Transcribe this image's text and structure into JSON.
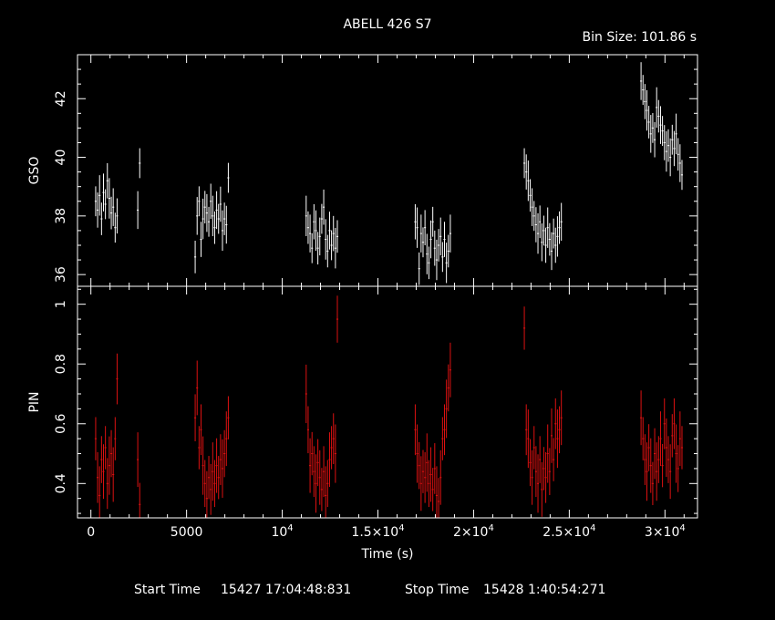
{
  "header": {
    "title": "ABELL 426 S7",
    "bin_size": "Bin Size: 101.86 s"
  },
  "footer": {
    "start_label": "Start Time",
    "start_value": "15427 17:04:48:831",
    "stop_label": "Stop Time",
    "stop_value": "15428  1:40:54:271"
  },
  "colors": {
    "gso": "#ffffff",
    "pin": "#dd1111",
    "background": "#000000",
    "frame": "#ffffff"
  },
  "chart_data": [
    {
      "type": "scatter",
      "panel": "top",
      "ylabel": "GSO",
      "xlim": [
        -700,
        31700
      ],
      "ylim": [
        35.6,
        43.5
      ],
      "yticks": [
        36,
        38,
        40,
        42
      ],
      "ytick_labels": [
        "36",
        "38",
        "40",
        "42"
      ],
      "yerr_typical": 0.6,
      "segments": [
        {
          "x0": 250,
          "n": 12,
          "y": [
            38.5,
            38.2,
            38.7,
            37.9,
            38.8,
            38.4,
            39.2,
            38.6,
            38.1,
            38.3,
            37.6,
            38.0
          ]
        },
        {
          "x0": 2450,
          "n": 2,
          "y": [
            38.2,
            39.8
          ]
        },
        {
          "x0": 5450,
          "n": 18,
          "y": [
            36.6,
            38.0,
            38.5,
            37.2,
            37.9,
            38.3,
            38.1,
            37.8,
            38.5,
            38.0,
            37.6,
            38.2,
            37.9,
            38.4,
            37.5,
            37.9,
            37.7,
            39.3
          ]
        },
        {
          "x0": 11250,
          "n": 17,
          "y": [
            38.0,
            37.6,
            37.4,
            36.9,
            37.8,
            37.5,
            36.9,
            37.3,
            37.9,
            38.3,
            37.2,
            36.8,
            37.5,
            37.0,
            37.4,
            36.9,
            37.3
          ]
        },
        {
          "x0": 16950,
          "n": 19,
          "y": [
            37.8,
            37.6,
            36.2,
            37.4,
            37.1,
            37.6,
            36.7,
            36.4,
            37.2,
            37.8,
            36.9,
            36.5,
            37.0,
            37.3,
            36.6,
            37.2,
            36.4,
            36.8,
            37.4
          ]
        },
        {
          "x0": 22650,
          "n": 20,
          "y": [
            39.8,
            39.5,
            39.2,
            38.7,
            38.3,
            38.0,
            37.7,
            37.4,
            37.8,
            37.1,
            37.5,
            37.0,
            37.6,
            37.2,
            36.8,
            37.4,
            37.0,
            37.3,
            37.6,
            37.8
          ]
        },
        {
          "x0": 28750,
          "n": 22,
          "y": [
            42.6,
            42.3,
            41.9,
            41.6,
            41.2,
            40.8,
            41.0,
            40.6,
            41.7,
            41.4,
            41.1,
            40.9,
            40.5,
            40.2,
            40.4,
            40.0,
            40.6,
            40.3,
            40.8,
            40.1,
            39.8,
            39.4
          ]
        }
      ]
    },
    {
      "type": "scatter",
      "panel": "bottom",
      "xlabel": "Time (s)",
      "ylabel": "PIN",
      "xlim": [
        -700,
        31700
      ],
      "ylim": [
        0.285,
        1.06
      ],
      "yticks": [
        0.4,
        0.6,
        0.8,
        1.0
      ],
      "ytick_labels": [
        "0.4",
        "0.6",
        "0.8",
        "1"
      ],
      "xticks": [
        0,
        5000,
        10000,
        15000,
        20000,
        25000,
        30000
      ],
      "xtick_labels": [
        {
          "base": "0",
          "exp": ""
        },
        {
          "base": "5000",
          "exp": ""
        },
        {
          "base": "10",
          "exp": "4"
        },
        {
          "base": "1.5×10",
          "exp": "4"
        },
        {
          "base": "2×10",
          "exp": "4"
        },
        {
          "base": "2.5×10",
          "exp": "4"
        },
        {
          "base": "3×10",
          "exp": "4"
        }
      ],
      "yerr_typical": 0.085,
      "segments": [
        {
          "x0": 250,
          "n": 12,
          "y": [
            0.55,
            0.42,
            0.36,
            0.48,
            0.44,
            0.52,
            0.4,
            0.46,
            0.5,
            0.43,
            0.55,
            0.75
          ]
        },
        {
          "x0": 2450,
          "n": 2,
          "y": [
            0.48,
            0.33
          ]
        },
        {
          "x0": 5450,
          "n": 18,
          "y": [
            0.62,
            0.72,
            0.52,
            0.58,
            0.46,
            0.4,
            0.35,
            0.42,
            0.38,
            0.44,
            0.4,
            0.46,
            0.42,
            0.48,
            0.45,
            0.5,
            0.55,
            0.62
          ]
        },
        {
          "x0": 11250,
          "n": 17,
          "y": [
            0.7,
            0.58,
            0.46,
            0.5,
            0.44,
            0.4,
            0.47,
            0.42,
            0.38,
            0.44,
            0.36,
            0.4,
            0.48,
            0.52,
            0.55,
            0.5,
            0.95
          ]
        },
        {
          "x0": 16950,
          "n": 19,
          "y": [
            0.58,
            0.5,
            0.46,
            0.4,
            0.44,
            0.42,
            0.47,
            0.4,
            0.43,
            0.38,
            0.45,
            0.36,
            0.34,
            0.42,
            0.55,
            0.58,
            0.65,
            0.72,
            0.78
          ]
        },
        {
          "x0": 22650,
          "n": 20,
          "y": [
            0.92,
            0.58,
            0.55,
            0.47,
            0.42,
            0.52,
            0.44,
            0.4,
            0.48,
            0.38,
            0.45,
            0.42,
            0.5,
            0.44,
            0.56,
            0.48,
            0.6,
            0.55,
            0.58,
            0.62
          ]
        },
        {
          "x0": 28750,
          "n": 22,
          "y": [
            0.62,
            0.55,
            0.48,
            0.44,
            0.52,
            0.46,
            0.4,
            0.5,
            0.44,
            0.48,
            0.55,
            0.46,
            0.6,
            0.52,
            0.48,
            0.44,
            0.56,
            0.6,
            0.5,
            0.45,
            0.55,
            0.52
          ]
        }
      ]
    }
  ]
}
